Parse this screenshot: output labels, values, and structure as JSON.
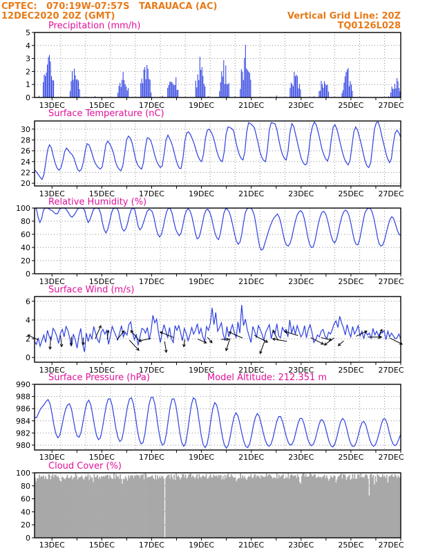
{
  "header": {
    "line1": "CPTEC:   070:19W-07:57S   TARAUACA (AC)",
    "line2": "12DEC2020 20Z (GMT)",
    "grid_note": "Vertical Grid Line: 20Z",
    "code": "TQ0126L028"
  },
  "colors": {
    "header": "#e87a18",
    "title": "#e0109a",
    "line": "#2c3fe0",
    "bar": "#2c3fe0",
    "cloud": "#a8a8a8",
    "grid": "#8a8a8a",
    "arrow": "#000000"
  },
  "x_ticks": [
    "13DEC",
    "15DEC",
    "17DEC",
    "19DEC",
    "21DEC",
    "23DEC",
    "25DEC",
    "27DEC"
  ],
  "chart_data": [
    {
      "type": "bar",
      "title": "Precipitation (mm/h)",
      "ylim": [
        0,
        5
      ],
      "yticks": [
        "0",
        "1",
        "2",
        "3",
        "4",
        "5"
      ],
      "x_range_days": [
        12.3,
        27.0
      ],
      "values": []
    },
    {
      "type": "line",
      "title": "Surface Temperature (nC)",
      "ylim": [
        19.5,
        31.5
      ],
      "yticks": [
        "20",
        "22",
        "24",
        "26",
        "28",
        "30"
      ],
      "x_range_days": [
        12.3,
        27.0
      ],
      "values": [
        22.5,
        22.1,
        21.6,
        21.1,
        20.7,
        21.6,
        23.9,
        26.2,
        27.1,
        26.5,
        25.0,
        23.7,
        22.8,
        22.4,
        22.8,
        24.1,
        25.8,
        26.5,
        26.1,
        25.6,
        25.3,
        24.6,
        23.5,
        22.5,
        22.2,
        22.6,
        23.9,
        26.0,
        27.3,
        27.1,
        26.2,
        25.0,
        23.9,
        23.3,
        22.9,
        22.6,
        23.0,
        25.0,
        27.2,
        27.8,
        27.3,
        26.6,
        25.6,
        24.1,
        23.1,
        22.6,
        22.3,
        23.2,
        25.6,
        28.0,
        28.7,
        28.3,
        27.4,
        25.7,
        24.2,
        23.3,
        22.9,
        22.6,
        23.8,
        26.6,
        28.4,
        28.3,
        27.8,
        26.6,
        25.2,
        24.1,
        23.4,
        22.9,
        23.2,
        25.4,
        28.0,
        28.9,
        28.2,
        27.4,
        26.2,
        24.8,
        23.6,
        22.8,
        22.7,
        24.5,
        27.6,
        29.3,
        29.5,
        29.0,
        28.2,
        27.3,
        26.1,
        25.0,
        24.3,
        24.0,
        25.4,
        28.3,
        29.8,
        30.0,
        29.5,
        28.7,
        27.5,
        26.0,
        24.9,
        24.2,
        24.0,
        25.8,
        29.0,
        30.4,
        30.3,
        30.1,
        29.7,
        28.0,
        26.5,
        25.3,
        24.6,
        24.3,
        25.8,
        29.5,
        31.2,
        31.0,
        30.7,
        30.3,
        29.0,
        27.5,
        25.8,
        24.8,
        24.2,
        24.0,
        26.2,
        29.8,
        31.2,
        31.1,
        31.0,
        30.0,
        28.2,
        26.5,
        25.3,
        24.6,
        24.3,
        26.0,
        29.3,
        31.0,
        30.5,
        29.0,
        27.5,
        26.0,
        24.6,
        23.8,
        23.4,
        23.6,
        25.8,
        28.8,
        30.5,
        31.3,
        30.8,
        29.5,
        28.0,
        26.4,
        25.3,
        24.5,
        24.1,
        25.2,
        28.0,
        30.4,
        30.8,
        30.0,
        28.6,
        27.1,
        25.7,
        24.5,
        23.8,
        23.4,
        24.2,
        26.8,
        29.5,
        30.4,
        29.8,
        28.5,
        27.2,
        25.6,
        24.1,
        23.2,
        22.9,
        23.8,
        26.8,
        30.0,
        31.2,
        31.3,
        30.2,
        28.6,
        27.2,
        25.7,
        24.5,
        23.8,
        24.5,
        27.2,
        29.2,
        29.8,
        29.3,
        28.5
      ]
    },
    {
      "type": "line",
      "title": "Relative Humidity (%)",
      "ylim": [
        0,
        100
      ],
      "yticks": [
        "0",
        "20",
        "40",
        "60",
        "80",
        "100"
      ],
      "x_range_days": [
        12.3,
        27.0
      ],
      "values": [
        100,
        99,
        86,
        78,
        84,
        97,
        100,
        100,
        99,
        97,
        96,
        93,
        91,
        92,
        98,
        100,
        100,
        100,
        97,
        93,
        88,
        86,
        89,
        93,
        98,
        100,
        100,
        100,
        97,
        86,
        78,
        82,
        90,
        98,
        100,
        100,
        99,
        92,
        78,
        67,
        62,
        68,
        79,
        92,
        99,
        100,
        100,
        95,
        81,
        69,
        65,
        68,
        76,
        88,
        97,
        100,
        98,
        86,
        72,
        67,
        70,
        78,
        87,
        95,
        98,
        97,
        94,
        84,
        70,
        60,
        56,
        60,
        70,
        84,
        95,
        100,
        99,
        92,
        79,
        68,
        62,
        58,
        62,
        74,
        88,
        96,
        99,
        96,
        88,
        76,
        62,
        53,
        55,
        64,
        77,
        90,
        97,
        98,
        94,
        86,
        74,
        62,
        55,
        52,
        61,
        77,
        92,
        99,
        98,
        94,
        85,
        73,
        60,
        50,
        45,
        48,
        60,
        78,
        93,
        99,
        100,
        100,
        97,
        89,
        74,
        56,
        41,
        36,
        38,
        47,
        56,
        65,
        73,
        80,
        85,
        88,
        91,
        86,
        76,
        62,
        50,
        44,
        42,
        46,
        55,
        68,
        80,
        89,
        94,
        96,
        93,
        84,
        70,
        55,
        45,
        40,
        41,
        50,
        64,
        78,
        88,
        94,
        95,
        91,
        82,
        70,
        58,
        50,
        47,
        52,
        63,
        76,
        87,
        94,
        97,
        95,
        89,
        78,
        64,
        51,
        45,
        44,
        52,
        66,
        81,
        93,
        98,
        100,
        99,
        94,
        84,
        70,
        55,
        45,
        42,
        44,
        52,
        63,
        74,
        83,
        87,
        84,
        76,
        67,
        60,
        58
      ]
    },
    {
      "type": "line",
      "title": "Surface Wind (m/s)",
      "ylim": [
        -0.5,
        6.5
      ],
      "yticks": [
        "0",
        "2",
        "4",
        "6"
      ],
      "x_range_days": [
        12.3,
        27.0
      ],
      "values": [
        1.7,
        1.4,
        2.1,
        1.2,
        1.8,
        2.4,
        1.6,
        2.9,
        2.2,
        1.9,
        3.1,
        2.8,
        2.3,
        1.5,
        2.6,
        3.0,
        2.2,
        3.3,
        2.9,
        2.1,
        1.2,
        2.5,
        1.9,
        1.0,
        2.3,
        3.1,
        1.4,
        0.6,
        2.6,
        1.7,
        2.5,
        2.0,
        3.3,
        2.6,
        1.9,
        1.6,
        2.7,
        3.0,
        2.5,
        2.9,
        1.4,
        2.3,
        3.3,
        2.8,
        2.3,
        1.9,
        2.6,
        3.4,
        2.2,
        2.7,
        2.4,
        3.5,
        3.8,
        2.6,
        1.9,
        2.5,
        1.3,
        2.2,
        3.1,
        3.0,
        2.6,
        3.2,
        1.9,
        2.8,
        4.5,
        3.7,
        4.1,
        2.7,
        1.6,
        2.6,
        3.5,
        2.8,
        2.1,
        3.2,
        2.0,
        1.6,
        3.4,
        2.9,
        3.4,
        2.6,
        1.8,
        3.1,
        2.6,
        1.8,
        2.4,
        3.2,
        2.5,
        2.9,
        3.6,
        2.5,
        3.1,
        2.2,
        1.7,
        3.3,
        2.9,
        3.6,
        5.3,
        3.5,
        4.8,
        2.8,
        3.2,
        3.7,
        2.5,
        1.8,
        3.3,
        2.2,
        2.9,
        3.5,
        2.7,
        2.1,
        3.8,
        2.6,
        5.6,
        3.4,
        4.1,
        3.0,
        2.3,
        1.6,
        3.3,
        2.8,
        2.1,
        3.4,
        3.0,
        2.5,
        1.8,
        2.7,
        3.1,
        3.5,
        2.0,
        2.9,
        2.5,
        3.6,
        2.3,
        2.1,
        3.2,
        2.8,
        3.0,
        2.2,
        4.0,
        2.6,
        3.3,
        2.5,
        3.4,
        2.8,
        2.2,
        2.5,
        3.4,
        2.1,
        3.0,
        3.5,
        2.7,
        1.6,
        1.9,
        2.4,
        2.2,
        2.8,
        3.0,
        2.3,
        2.0,
        2.7,
        2.5,
        3.0,
        3.6,
        3.9,
        3.2,
        4.4,
        3.7,
        3.2,
        2.4,
        3.5,
        2.7,
        2.2,
        3.3,
        2.5,
        2.9,
        3.4,
        2.3,
        2.8,
        2.0,
        2.8,
        2.4,
        2.6,
        2.0,
        3.1,
        2.4,
        2.8,
        2.3,
        2.7,
        2.6,
        2.9,
        1.9,
        2.8,
        2.2,
        2.6,
        2.3,
        2.0,
        2.1,
        2.5,
        2.0
      ]
    },
    {
      "type": "line",
      "title": "Surface Pressure (hPa)",
      "annotation": "Model Altitude: 212.351 m",
      "ylim": [
        979.2,
        990
      ],
      "yticks": [
        "980",
        "982",
        "984",
        "986",
        "988",
        "990"
      ],
      "x_range_days": [
        12.3,
        27.0
      ],
      "values": [
        984.6,
        984.5,
        985.2,
        985.9,
        986.3,
        986.7,
        987.2,
        987.5,
        986.8,
        985.2,
        983.3,
        981.9,
        981.2,
        981.6,
        983.0,
        984.6,
        985.9,
        986.6,
        986.8,
        986.0,
        984.3,
        982.5,
        981.5,
        981.3,
        982.1,
        983.8,
        985.6,
        986.9,
        987.4,
        986.7,
        985.0,
        983.1,
        981.6,
        980.9,
        981.2,
        982.7,
        984.7,
        986.5,
        987.6,
        987.6,
        986.6,
        984.7,
        982.7,
        981.3,
        980.6,
        980.9,
        982.4,
        984.5,
        986.4,
        987.6,
        987.8,
        986.8,
        984.9,
        982.7,
        981.0,
        980.2,
        980.4,
        981.9,
        984.2,
        986.5,
        987.8,
        987.9,
        986.9,
        984.8,
        982.5,
        980.8,
        980.0,
        980.3,
        981.8,
        984.1,
        986.3,
        987.6,
        987.6,
        986.4,
        984.3,
        982.0,
        980.4,
        979.8,
        980.3,
        982.2,
        984.6,
        986.7,
        987.8,
        987.5,
        986.0,
        983.8,
        981.6,
        980.1,
        979.6,
        980.1,
        981.8,
        984.1,
        986.0,
        987.0,
        986.6,
        985.2,
        983.2,
        981.3,
        980.0,
        979.5,
        980.0,
        981.4,
        983.2,
        984.7,
        985.3,
        984.8,
        983.5,
        981.9,
        980.6,
        979.8,
        979.6,
        980.2,
        981.6,
        983.3,
        984.6,
        985.2,
        984.7,
        983.5,
        982.1,
        980.9,
        980.1,
        979.8,
        980.1,
        981.1,
        982.5,
        983.9,
        984.7,
        984.7,
        983.9,
        982.6,
        981.3,
        980.4,
        980.0,
        980.2,
        981.0,
        982.3,
        983.6,
        984.4,
        984.4,
        983.6,
        982.3,
        981.0,
        980.2,
        979.9,
        980.2,
        981.1,
        982.4,
        983.6,
        984.2,
        984.0,
        983.1,
        981.8,
        980.6,
        979.9,
        979.7,
        980.2,
        981.3,
        982.7,
        983.9,
        984.4,
        984.0,
        982.9,
        981.5,
        980.4,
        979.8,
        979.8,
        980.4,
        981.5,
        982.8,
        983.7,
        983.9,
        983.3,
        982.1,
        980.9,
        980.1,
        979.8,
        980.1,
        981.0,
        982.2,
        983.5,
        984.3,
        984.3,
        983.5,
        982.2,
        981.0,
        980.2,
        979.9,
        980.2,
        981.0,
        981.8
      ]
    },
    {
      "type": "bar",
      "title": "Cloud Cover (%)",
      "ylim": [
        0,
        100
      ],
      "yticks": [
        "0",
        "20",
        "40",
        "60",
        "80",
        "100"
      ],
      "x_range_days": [
        12.3,
        27.0
      ],
      "values": []
    }
  ]
}
